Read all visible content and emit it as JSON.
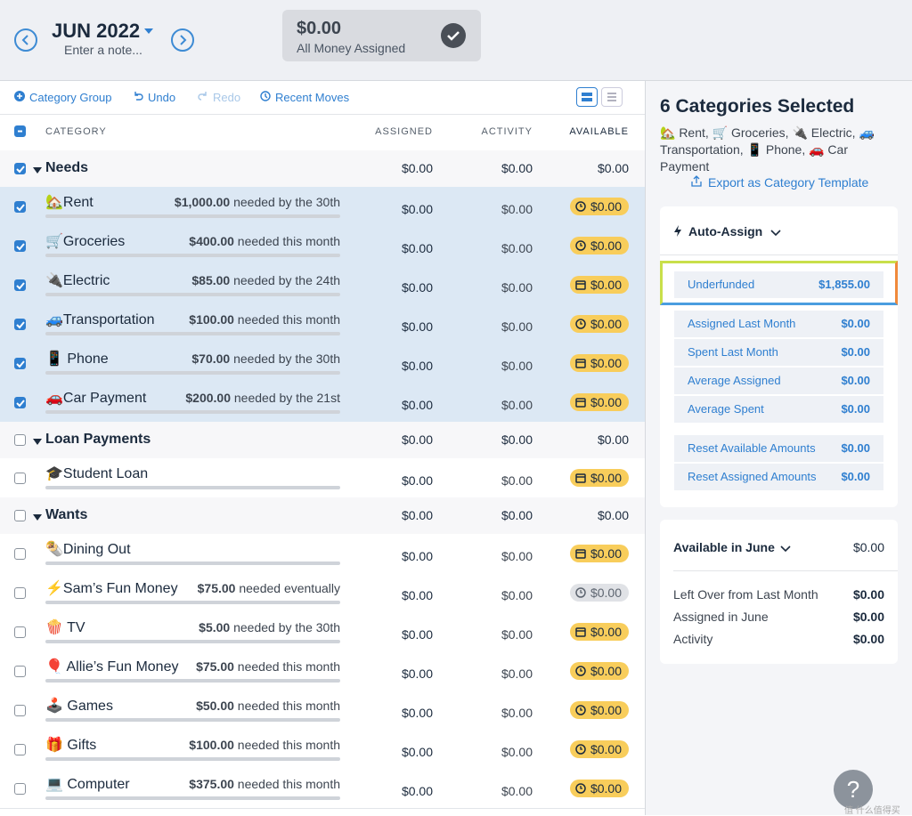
{
  "header": {
    "month": "JUN 2022",
    "note": "Enter a note...",
    "amount": "$0.00",
    "status": "All Money Assigned"
  },
  "toolbar": [
    "Category Group",
    "Undo",
    "Redo",
    "Recent Moves"
  ],
  "columns": [
    "CATEGORY",
    "ASSIGNED",
    "ACTIVITY",
    "AVAILABLE"
  ],
  "groups": [
    {
      "name": "Needs",
      "checked": true,
      "assigned": "$0.00",
      "activity": "$0.00",
      "available": "$0.00",
      "categories": [
        {
          "name": "🏡Rent",
          "goal_amount": "$1,000.00",
          "goal_text": "needed by the 30th",
          "assigned": "$0.00",
          "activity": "$0.00",
          "available": "$0.00",
          "available_style": "clock",
          "checked": true
        },
        {
          "name": "🛒Groceries",
          "goal_amount": "$400.00",
          "goal_text": "needed this month",
          "assigned": "$0.00",
          "activity": "$0.00",
          "available": "$0.00",
          "available_style": "clock",
          "checked": true
        },
        {
          "name": "🔌Electric",
          "goal_amount": "$85.00",
          "goal_text": "needed by the 24th",
          "assigned": "$0.00",
          "activity": "$0.00",
          "available": "$0.00",
          "available_style": "calendar",
          "checked": true
        },
        {
          "name": "🚙Transportation",
          "goal_amount": "$100.00",
          "goal_text": "needed this month",
          "assigned": "$0.00",
          "activity": "$0.00",
          "available": "$0.00",
          "available_style": "clock",
          "checked": true
        },
        {
          "name": "📱 Phone",
          "goal_amount": "$70.00",
          "goal_text": "needed by the 30th",
          "assigned": "$0.00",
          "activity": "$0.00",
          "available": "$0.00",
          "available_style": "calendar",
          "checked": true
        },
        {
          "name": "🚗Car Payment",
          "goal_amount": "$200.00",
          "goal_text": "needed by the 21st",
          "assigned": "$0.00",
          "activity": "$0.00",
          "available": "$0.00",
          "available_style": "calendar",
          "checked": true
        }
      ]
    },
    {
      "name": "Loan Payments",
      "checked": false,
      "assigned": "$0.00",
      "activity": "$0.00",
      "available": "$0.00",
      "categories": [
        {
          "name": "🎓Student Loan",
          "assigned": "$0.00",
          "activity": "$0.00",
          "available": "$0.00",
          "available_style": "calendar",
          "checked": false
        }
      ]
    },
    {
      "name": "Wants",
      "checked": false,
      "assigned": "$0.00",
      "activity": "$0.00",
      "available": "$0.00",
      "categories": [
        {
          "name": "🌯Dining Out",
          "assigned": "$0.00",
          "activity": "$0.00",
          "available": "$0.00",
          "available_style": "calendar",
          "checked": false
        },
        {
          "name": "⚡Sam’s Fun Money",
          "goal_amount": "$75.00",
          "goal_text": "needed eventually",
          "assigned": "$0.00",
          "activity": "$0.00",
          "available": "$0.00",
          "available_style": "neutral",
          "checked": false
        },
        {
          "name": "🍿 TV",
          "goal_amount": "$5.00",
          "goal_text": "needed by the 30th",
          "assigned": "$0.00",
          "activity": "$0.00",
          "available": "$0.00",
          "available_style": "calendar",
          "checked": false
        },
        {
          "name": "🎈 Allie’s Fun Money",
          "goal_amount": "$75.00",
          "goal_text": "needed this month",
          "assigned": "$0.00",
          "activity": "$0.00",
          "available": "$0.00",
          "available_style": "clock",
          "checked": false
        },
        {
          "name": "🕹️ Games",
          "goal_amount": "$50.00",
          "goal_text": "needed this month",
          "assigned": "$0.00",
          "activity": "$0.00",
          "available": "$0.00",
          "available_style": "clock",
          "checked": false
        },
        {
          "name": "🎁 Gifts",
          "goal_amount": "$100.00",
          "goal_text": "needed this month",
          "assigned": "$0.00",
          "activity": "$0.00",
          "available": "$0.00",
          "available_style": "clock",
          "checked": false
        },
        {
          "name": "💻 Computer",
          "goal_amount": "$375.00",
          "goal_text": "needed this month",
          "assigned": "$0.00",
          "activity": "$0.00",
          "available": "$0.00",
          "available_style": "clock",
          "checked": false
        }
      ]
    }
  ],
  "inspector": {
    "title": "6 Categories Selected",
    "subtitle": "🏡 Rent, 🛒 Groceries, 🔌 Electric, 🚙 Transportation, 📱 Phone, 🚗 Car Payment",
    "export": "Export as Category Template",
    "auto_assign": "Auto-Assign",
    "options": [
      {
        "label": "Underfunded",
        "value": "$1,855.00"
      },
      {
        "label": "Assigned Last Month",
        "value": "$0.00"
      },
      {
        "label": "Spent Last Month",
        "value": "$0.00"
      },
      {
        "label": "Average Assigned",
        "value": "$0.00"
      },
      {
        "label": "Average Spent",
        "value": "$0.00"
      },
      {
        "label": "Reset Available Amounts",
        "value": "$0.00"
      },
      {
        "label": "Reset Assigned Amounts",
        "value": "$0.00"
      }
    ],
    "available_title": "Available in June",
    "available_value": "$0.00",
    "breakdown": [
      {
        "label": "Left Over from Last Month",
        "value": "$0.00"
      },
      {
        "label": "Assigned in June",
        "value": "$0.00"
      },
      {
        "label": "Activity",
        "value": "$0.00"
      }
    ]
  },
  "help": "?",
  "watermark": "值 什么值得买"
}
